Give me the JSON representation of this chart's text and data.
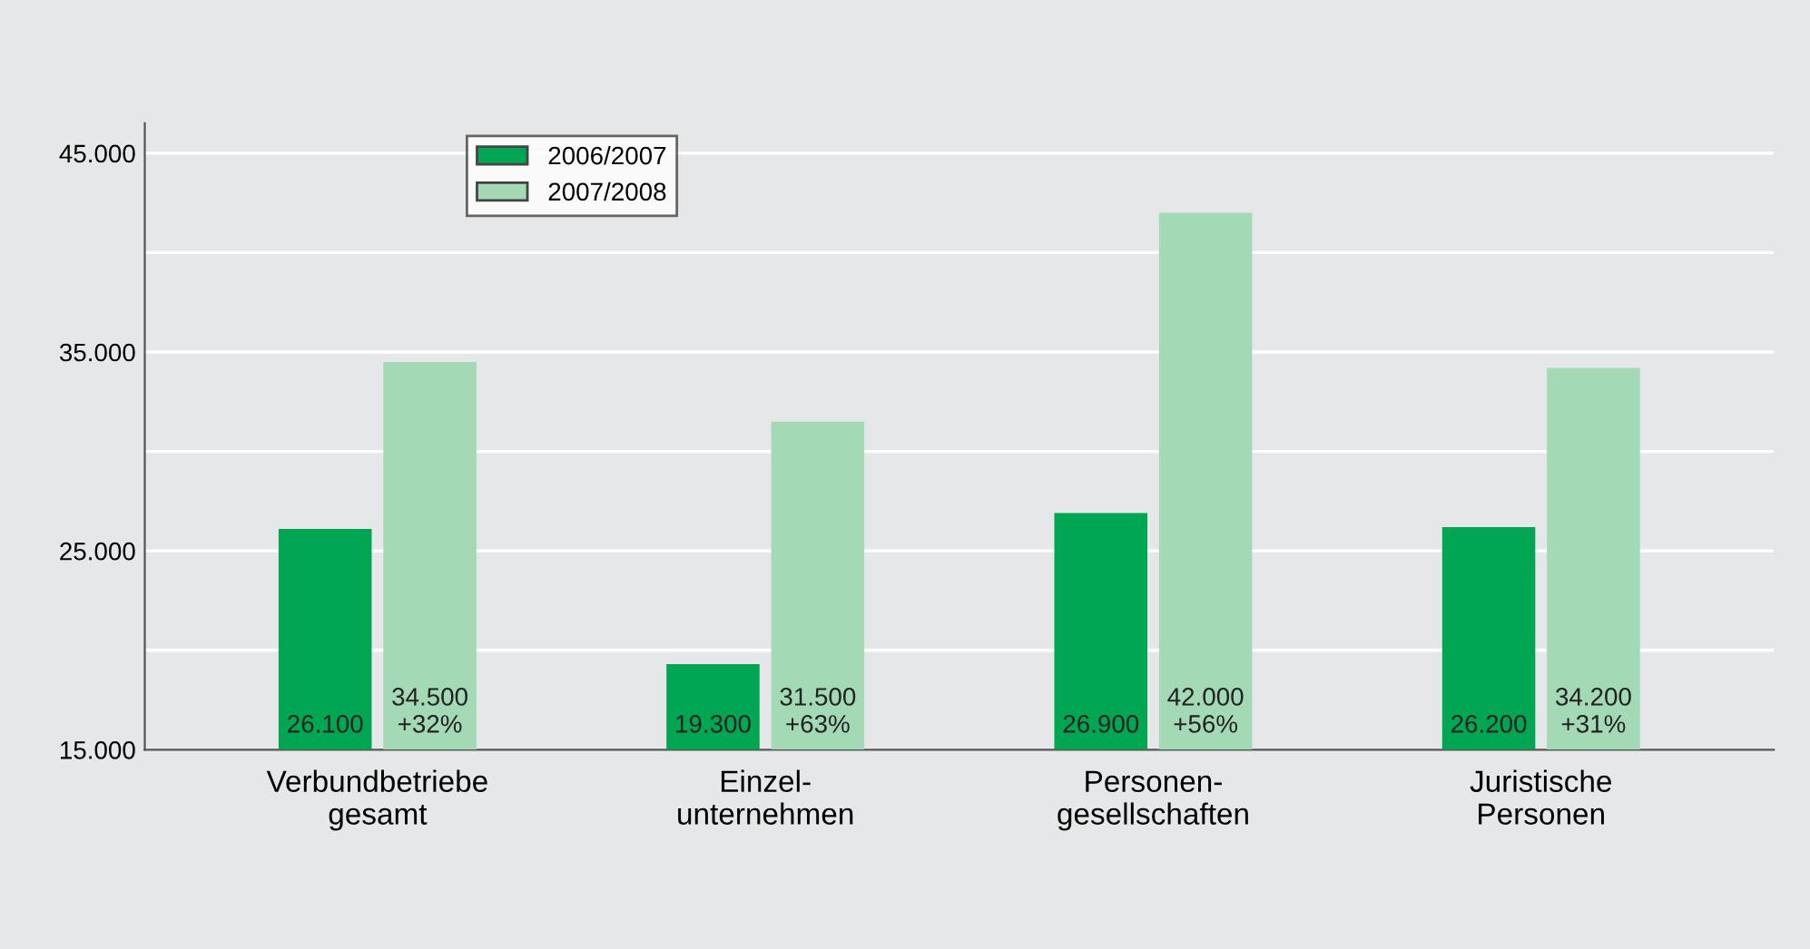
{
  "chart_data": {
    "type": "bar",
    "categories": [
      "Verbundbetriebe\ngesamt",
      "Einzel-\nunternehmen",
      "Personen-\ngesellschaften",
      "Juristische\nPersonen"
    ],
    "series": [
      {
        "name": "2006/2007",
        "color": "#00a651",
        "values": [
          26100,
          19300,
          26900,
          26200
        ],
        "value_labels": [
          "26.100",
          "19.300",
          "26.900",
          "26.200"
        ]
      },
      {
        "name": "2007/2008",
        "color": "#a3d9b5",
        "values": [
          34500,
          31500,
          42000,
          34200
        ],
        "value_labels": [
          "34.500\n+32%",
          "31.500\n+63%",
          "42.000\n+56%",
          "34.200\n+31%"
        ]
      }
    ],
    "ylim": [
      15000,
      46500
    ],
    "yticks": [
      {
        "value": 15000,
        "label": "15.000"
      },
      {
        "value": 20000,
        "label": null
      },
      {
        "value": 25000,
        "label": "25.000"
      },
      {
        "value": 30000,
        "label": null
      },
      {
        "value": 35000,
        "label": "35.000"
      },
      {
        "value": 40000,
        "label": null
      },
      {
        "value": 45000,
        "label": "45.000"
      }
    ],
    "grid": "y",
    "legend": "top left"
  }
}
